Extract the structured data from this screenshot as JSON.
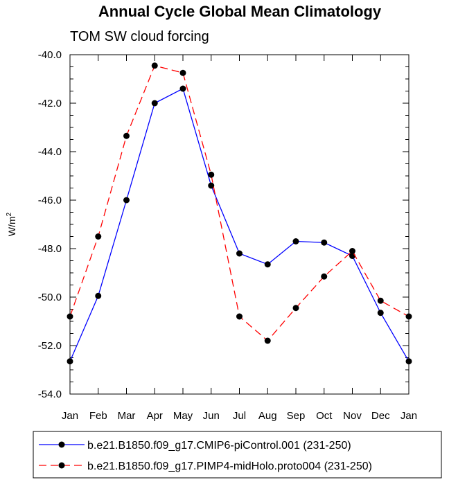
{
  "chart_data": {
    "type": "line",
    "title": "Annual Cycle Global Mean Climatology",
    "subtitle": "TOM SW cloud forcing",
    "xlabel": "",
    "ylabel": "W/m",
    "ylabel_superscript": "2",
    "categories": [
      "Jan",
      "Feb",
      "Mar",
      "Apr",
      "May",
      "Jun",
      "Jul",
      "Aug",
      "Sep",
      "Oct",
      "Nov",
      "Dec",
      "Jan"
    ],
    "ylim": [
      -54.0,
      -40.0
    ],
    "yticks": [
      -40.0,
      -42.0,
      -44.0,
      -46.0,
      -48.0,
      -50.0,
      -52.0,
      -54.0
    ],
    "ytick_labels": [
      "-40.0",
      "-42.0",
      "-44.0",
      "-46.0",
      "-48.0",
      "-50.0",
      "-52.0",
      "-54.0"
    ],
    "series": [
      {
        "name": "b.e21.B1850.f09_g17.CMIP6-piControl.001 (231-250)",
        "color": "#0000ff",
        "dash": "solid",
        "values": [
          -52.65,
          -49.95,
          -46.0,
          -42.0,
          -41.4,
          -45.4,
          -48.2,
          -48.65,
          -47.7,
          -47.75,
          -48.3,
          -50.65,
          -52.65
        ]
      },
      {
        "name": "b.e21.B1850.f09_g17.PIMP4-midHolo.proto004 (231-250)",
        "color": "#ff0000",
        "dash": "dashed",
        "values": [
          -50.8,
          -47.5,
          -43.35,
          -40.45,
          -40.75,
          -44.95,
          -50.8,
          -51.8,
          -50.45,
          -49.15,
          -48.1,
          -50.15,
          -50.8
        ]
      }
    ],
    "legend_position": "bottom"
  }
}
